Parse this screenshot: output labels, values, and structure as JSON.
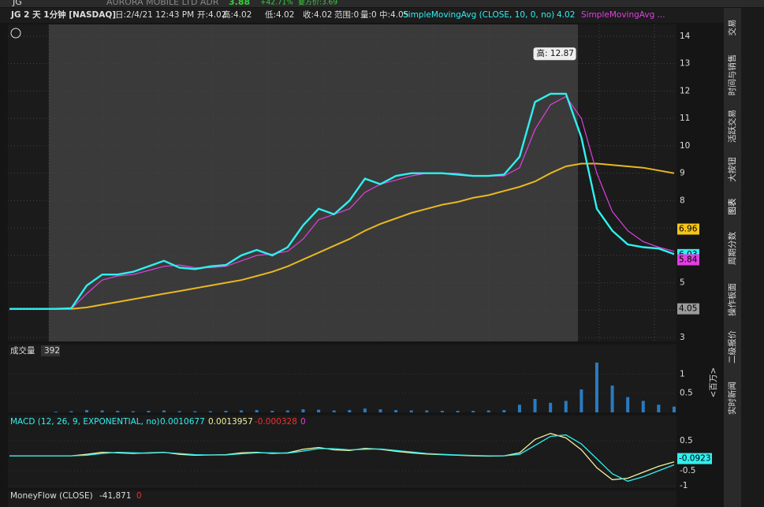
{
  "header": {
    "symbol": "JG",
    "company": "AURORA MOBILE LTD ADR",
    "last": "3.88",
    "change": "+42.71%",
    "bid": "要方价:3.69"
  },
  "info_bar": {
    "title": "JG 2 天 1分钟 [NASDAQ]",
    "date": "日:2/4/21 12:43 PM",
    "open": "开:4.02",
    "high": "高:4.02",
    "low": "低:4.02",
    "close": "收:4.02",
    "range": "范围:0",
    "volume": "量:0",
    "mid": "中:4.05",
    "study1": "SimpleMovingAvg (CLOSE, 10, 0, no)",
    "study1_value": "4.02",
    "study2": "SimpleMovingAvg ..."
  },
  "price_chart": {
    "type": "line",
    "x": [
      0,
      1,
      2,
      3,
      4,
      5,
      6,
      7,
      8,
      9,
      10,
      11,
      12,
      13,
      14,
      15,
      16,
      17,
      18,
      19,
      20,
      21,
      22,
      23,
      24,
      25,
      26,
      27,
      28,
      29,
      30,
      31,
      32,
      33,
      34,
      35,
      36,
      37,
      38,
      39,
      40,
      41,
      42,
      43
    ],
    "xlim": [
      0,
      43
    ],
    "ylim": [
      2.86,
      14.43
    ],
    "yticks": [
      3,
      4,
      5,
      6,
      7,
      8,
      9,
      10,
      11,
      12,
      13,
      14
    ],
    "series": [
      {
        "color": "#e8b820",
        "values": [
          4.05,
          4.05,
          4.05,
          4.05,
          4.05,
          4.1,
          4.2,
          4.3,
          4.4,
          4.5,
          4.6,
          4.7,
          4.8,
          4.9,
          5.0,
          5.1,
          5.25,
          5.4,
          5.6,
          5.85,
          6.1,
          6.35,
          6.6,
          6.9,
          7.15,
          7.35,
          7.55,
          7.7,
          7.85,
          7.95,
          8.1,
          8.2,
          8.35,
          8.5,
          8.7,
          9.0,
          9.25,
          9.35,
          9.35,
          9.3,
          9.25,
          9.2,
          9.1,
          9.0
        ]
      },
      {
        "color": "#e040e0",
        "values": [
          4.05,
          4.05,
          4.05,
          4.05,
          4.05,
          4.6,
          5.1,
          5.25,
          5.3,
          5.45,
          5.6,
          5.65,
          5.55,
          5.55,
          5.6,
          5.8,
          6.0,
          6.05,
          6.15,
          6.6,
          7.3,
          7.5,
          7.7,
          8.3,
          8.6,
          8.75,
          8.9,
          9.0,
          9.0,
          9.0,
          8.9,
          8.9,
          8.9,
          9.2,
          10.6,
          11.5,
          11.8,
          11.0,
          9.0,
          7.6,
          6.9,
          6.5,
          6.3,
          6.15
        ]
      },
      {
        "color": "#30f0f0",
        "values": [
          4.05,
          4.05,
          4.05,
          4.05,
          4.07,
          4.9,
          5.3,
          5.3,
          5.4,
          5.6,
          5.8,
          5.55,
          5.5,
          5.6,
          5.65,
          6.0,
          6.2,
          6.0,
          6.3,
          7.1,
          7.7,
          7.5,
          8.0,
          8.8,
          8.6,
          8.9,
          9.0,
          9.0,
          9.0,
          8.95,
          8.9,
          8.9,
          8.95,
          9.6,
          11.6,
          11.9,
          11.9,
          10.3,
          7.7,
          6.9,
          6.4,
          6.3,
          6.25,
          6.05
        ]
      }
    ],
    "annotation": {
      "label": "高: 12.87",
      "value": 12.87
    },
    "price_labels": [
      {
        "value": 6.96,
        "label": "6.96",
        "color": "#f5c518"
      },
      {
        "value": 6.03,
        "label": "6.03",
        "color": "#30f0f0"
      },
      {
        "value": 5.84,
        "label": "5.84",
        "color": "#e040e0"
      },
      {
        "value": 4.05,
        "label": "4.05",
        "color": "#9a9a9a"
      }
    ]
  },
  "volume": {
    "title": "成交量",
    "value": "392",
    "unit": "<百万>",
    "ylim": [
      0,
      1.77
    ],
    "yticks": [
      0.5,
      1
    ],
    "color": "#2a7bc0",
    "values": [
      0,
      0,
      0,
      0.02,
      0.03,
      0.06,
      0.05,
      0.04,
      0.03,
      0.04,
      0.05,
      0.03,
      0.03,
      0.03,
      0.04,
      0.05,
      0.06,
      0.04,
      0.05,
      0.08,
      0.07,
      0.05,
      0.06,
      0.1,
      0.08,
      0.06,
      0.05,
      0.05,
      0.04,
      0.04,
      0.04,
      0.05,
      0.06,
      0.2,
      0.35,
      0.25,
      0.3,
      0.6,
      1.3,
      0.7,
      0.4,
      0.3,
      0.2,
      0.15
    ]
  },
  "macd": {
    "title": "MACD (12, 26, 9, EXPONENTIAL, no)",
    "value1": "0.0010677",
    "value2": "0.0013957",
    "value3": "-0.000328",
    "value4": "0",
    "ylim": [
      -1.08,
      1.35
    ],
    "yticks": [
      0.5,
      -0.5,
      -1
    ],
    "current": {
      "value": -0.0923,
      "label": "-0.0923"
    },
    "series": [
      {
        "color": "#f0f0a0",
        "values": [
          0,
          0,
          0,
          0,
          0,
          0.05,
          0.12,
          0.1,
          0.08,
          0.1,
          0.12,
          0.05,
          0.02,
          0.03,
          0.04,
          0.1,
          0.12,
          0.08,
          0.1,
          0.22,
          0.28,
          0.2,
          0.18,
          0.25,
          0.22,
          0.15,
          0.1,
          0.06,
          0.04,
          0.02,
          0,
          -0.01,
          0,
          0.1,
          0.55,
          0.75,
          0.6,
          0.2,
          -0.4,
          -0.8,
          -0.75,
          -0.55,
          -0.35,
          -0.2
        ]
      },
      {
        "color": "#30f0f0",
        "values": [
          0,
          0,
          0,
          0,
          0,
          0.02,
          0.08,
          0.12,
          0.1,
          0.09,
          0.11,
          0.08,
          0.04,
          0.03,
          0.03,
          0.07,
          0.1,
          0.1,
          0.09,
          0.16,
          0.24,
          0.24,
          0.2,
          0.22,
          0.23,
          0.18,
          0.13,
          0.08,
          0.05,
          0.03,
          0.01,
          0,
          0,
          0.05,
          0.35,
          0.65,
          0.7,
          0.4,
          -0.1,
          -0.6,
          -0.85,
          -0.7,
          -0.5,
          -0.3
        ]
      }
    ]
  },
  "moneyflow": {
    "title": "MoneyFlow (CLOSE)",
    "value1": "-41,871",
    "value2": "0"
  },
  "sidebar": [
    "交易",
    "时间与销售",
    "活跃交易",
    "大按钮",
    "图表",
    "周期分数",
    "操作板面",
    "二级报价",
    "实时新闻"
  ]
}
